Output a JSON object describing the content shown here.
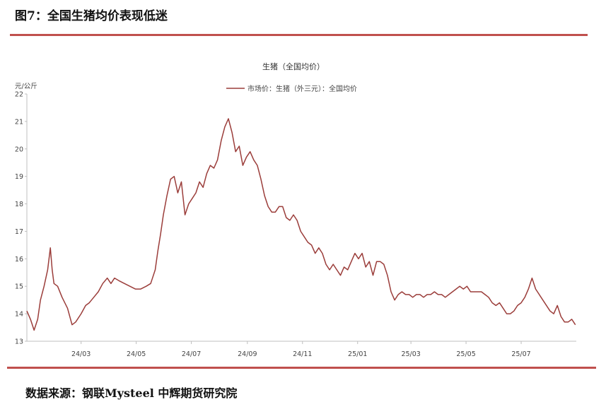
{
  "header": {
    "figure_title": "图7：全国生猪均价表现低迷"
  },
  "footer": {
    "source": "数据来源：钢联Mysteel 中辉期货研究院"
  },
  "colors": {
    "line": "#9b3d3a",
    "accent_rule": "#c0504d"
  },
  "chart_data": {
    "type": "line",
    "title": "生猪（全国均价）",
    "ylabel": "元/公斤",
    "xlabel": "",
    "ylim": [
      13,
      22
    ],
    "y_ticks": [
      13,
      14,
      15,
      16,
      17,
      18,
      19,
      20,
      21,
      22
    ],
    "x_start": "2024-01-01",
    "x_end": "2025-08-31",
    "x_ticks": [
      {
        "label": "24/03",
        "date": "2024-03-01"
      },
      {
        "label": "24/05",
        "date": "2024-05-01"
      },
      {
        "label": "24/07",
        "date": "2024-07-01"
      },
      {
        "label": "24/09",
        "date": "2024-09-01"
      },
      {
        "label": "24/11",
        "date": "2024-11-01"
      },
      {
        "label": "25/01",
        "date": "2025-01-01"
      },
      {
        "label": "25/03",
        "date": "2025-03-01"
      },
      {
        "label": "25/05",
        "date": "2025-05-01"
      },
      {
        "label": "25/07",
        "date": "2025-07-01"
      }
    ],
    "legend_position": "top-center",
    "series": [
      {
        "name": "市场价：生猪（外三元）：全国均价",
        "points": [
          [
            "2024-01-01",
            14.1
          ],
          [
            "2024-01-05",
            13.8
          ],
          [
            "2024-01-09",
            13.4
          ],
          [
            "2024-01-13",
            13.8
          ],
          [
            "2024-01-16",
            14.5
          ],
          [
            "2024-01-20",
            15.0
          ],
          [
            "2024-01-24",
            15.6
          ],
          [
            "2024-01-27",
            16.4
          ],
          [
            "2024-01-29",
            15.6
          ],
          [
            "2024-01-31",
            15.1
          ],
          [
            "2024-02-04",
            15.0
          ],
          [
            "2024-02-09",
            14.6
          ],
          [
            "2024-02-15",
            14.2
          ],
          [
            "2024-02-20",
            13.6
          ],
          [
            "2024-02-24",
            13.7
          ],
          [
            "2024-03-01",
            14.0
          ],
          [
            "2024-03-06",
            14.3
          ],
          [
            "2024-03-10",
            14.4
          ],
          [
            "2024-03-15",
            14.6
          ],
          [
            "2024-03-20",
            14.8
          ],
          [
            "2024-03-25",
            15.1
          ],
          [
            "2024-03-30",
            15.3
          ],
          [
            "2024-04-03",
            15.1
          ],
          [
            "2024-04-07",
            15.3
          ],
          [
            "2024-04-12",
            15.2
          ],
          [
            "2024-04-18",
            15.1
          ],
          [
            "2024-04-24",
            15.0
          ],
          [
            "2024-04-30",
            14.9
          ],
          [
            "2024-05-06",
            14.9
          ],
          [
            "2024-05-12",
            15.0
          ],
          [
            "2024-05-17",
            15.1
          ],
          [
            "2024-05-22",
            15.6
          ],
          [
            "2024-05-25",
            16.3
          ],
          [
            "2024-05-28",
            16.9
          ],
          [
            "2024-05-31",
            17.6
          ],
          [
            "2024-06-04",
            18.3
          ],
          [
            "2024-06-08",
            18.9
          ],
          [
            "2024-06-12",
            19.0
          ],
          [
            "2024-06-16",
            18.4
          ],
          [
            "2024-06-20",
            18.8
          ],
          [
            "2024-06-24",
            17.6
          ],
          [
            "2024-06-28",
            18.0
          ],
          [
            "2024-07-02",
            18.2
          ],
          [
            "2024-07-06",
            18.4
          ],
          [
            "2024-07-10",
            18.8
          ],
          [
            "2024-07-14",
            18.6
          ],
          [
            "2024-07-18",
            19.1
          ],
          [
            "2024-07-22",
            19.4
          ],
          [
            "2024-07-26",
            19.3
          ],
          [
            "2024-07-30",
            19.6
          ],
          [
            "2024-08-03",
            20.3
          ],
          [
            "2024-08-07",
            20.8
          ],
          [
            "2024-08-11",
            21.1
          ],
          [
            "2024-08-15",
            20.6
          ],
          [
            "2024-08-19",
            19.9
          ],
          [
            "2024-08-23",
            20.1
          ],
          [
            "2024-08-27",
            19.4
          ],
          [
            "2024-08-31",
            19.7
          ],
          [
            "2024-09-04",
            19.9
          ],
          [
            "2024-09-08",
            19.6
          ],
          [
            "2024-09-12",
            19.4
          ],
          [
            "2024-09-16",
            18.9
          ],
          [
            "2024-09-20",
            18.3
          ],
          [
            "2024-09-24",
            17.9
          ],
          [
            "2024-09-28",
            17.7
          ],
          [
            "2024-10-02",
            17.7
          ],
          [
            "2024-10-06",
            17.9
          ],
          [
            "2024-10-10",
            17.9
          ],
          [
            "2024-10-14",
            17.5
          ],
          [
            "2024-10-18",
            17.4
          ],
          [
            "2024-10-22",
            17.6
          ],
          [
            "2024-10-26",
            17.4
          ],
          [
            "2024-10-30",
            17.0
          ],
          [
            "2024-11-03",
            16.8
          ],
          [
            "2024-11-07",
            16.6
          ],
          [
            "2024-11-11",
            16.5
          ],
          [
            "2024-11-15",
            16.2
          ],
          [
            "2024-11-19",
            16.4
          ],
          [
            "2024-11-23",
            16.2
          ],
          [
            "2024-11-27",
            15.8
          ],
          [
            "2024-12-01",
            15.6
          ],
          [
            "2024-12-05",
            15.8
          ],
          [
            "2024-12-09",
            15.6
          ],
          [
            "2024-12-13",
            15.4
          ],
          [
            "2024-12-17",
            15.7
          ],
          [
            "2024-12-21",
            15.6
          ],
          [
            "2024-12-25",
            15.9
          ],
          [
            "2024-12-29",
            16.2
          ],
          [
            "2025-01-02",
            16.0
          ],
          [
            "2025-01-06",
            16.2
          ],
          [
            "2025-01-10",
            15.7
          ],
          [
            "2025-01-14",
            15.9
          ],
          [
            "2025-01-18",
            15.4
          ],
          [
            "2025-01-22",
            15.9
          ],
          [
            "2025-01-26",
            15.9
          ],
          [
            "2025-01-30",
            15.8
          ],
          [
            "2025-02-03",
            15.4
          ],
          [
            "2025-02-07",
            14.8
          ],
          [
            "2025-02-11",
            14.5
          ],
          [
            "2025-02-15",
            14.7
          ],
          [
            "2025-02-19",
            14.8
          ],
          [
            "2025-02-23",
            14.7
          ],
          [
            "2025-02-27",
            14.7
          ],
          [
            "2025-03-03",
            14.6
          ],
          [
            "2025-03-07",
            14.7
          ],
          [
            "2025-03-11",
            14.7
          ],
          [
            "2025-03-15",
            14.6
          ],
          [
            "2025-03-19",
            14.7
          ],
          [
            "2025-03-23",
            14.7
          ],
          [
            "2025-03-27",
            14.8
          ],
          [
            "2025-03-31",
            14.7
          ],
          [
            "2025-04-04",
            14.7
          ],
          [
            "2025-04-08",
            14.6
          ],
          [
            "2025-04-12",
            14.7
          ],
          [
            "2025-04-16",
            14.8
          ],
          [
            "2025-04-20",
            14.9
          ],
          [
            "2025-04-24",
            15.0
          ],
          [
            "2025-04-28",
            14.9
          ],
          [
            "2025-05-02",
            15.0
          ],
          [
            "2025-05-06",
            14.8
          ],
          [
            "2025-05-10",
            14.8
          ],
          [
            "2025-05-14",
            14.8
          ],
          [
            "2025-05-18",
            14.8
          ],
          [
            "2025-05-22",
            14.7
          ],
          [
            "2025-05-26",
            14.6
          ],
          [
            "2025-05-30",
            14.4
          ],
          [
            "2025-06-03",
            14.3
          ],
          [
            "2025-06-07",
            14.4
          ],
          [
            "2025-06-11",
            14.2
          ],
          [
            "2025-06-15",
            14.0
          ],
          [
            "2025-06-19",
            14.0
          ],
          [
            "2025-06-23",
            14.1
          ],
          [
            "2025-06-27",
            14.3
          ],
          [
            "2025-07-01",
            14.4
          ],
          [
            "2025-07-05",
            14.6
          ],
          [
            "2025-07-09",
            14.9
          ],
          [
            "2025-07-13",
            15.3
          ],
          [
            "2025-07-17",
            14.9
          ],
          [
            "2025-07-21",
            14.7
          ],
          [
            "2025-07-25",
            14.5
          ],
          [
            "2025-07-29",
            14.3
          ],
          [
            "2025-08-02",
            14.1
          ],
          [
            "2025-08-06",
            14.0
          ],
          [
            "2025-08-10",
            14.3
          ],
          [
            "2025-08-14",
            13.9
          ],
          [
            "2025-08-18",
            13.7
          ],
          [
            "2025-08-22",
            13.7
          ],
          [
            "2025-08-26",
            13.8
          ],
          [
            "2025-08-30",
            13.6
          ]
        ]
      }
    ]
  }
}
